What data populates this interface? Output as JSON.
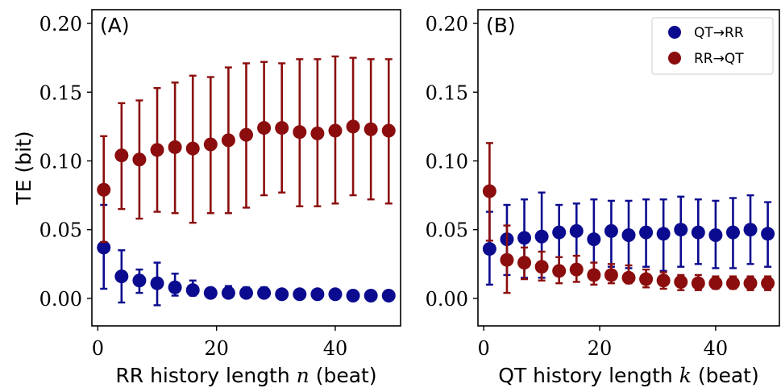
{
  "colors": {
    "qt_to_rr": "#0b0b8f",
    "rr_to_qt": "#8b0d0d"
  },
  "legend": {
    "qt_to_rr": "QT→RR",
    "rr_to_qt": "RR→QT"
  },
  "chart_data": [
    {
      "type": "scatter",
      "panel_label": "(A)",
      "xlabel": "RR history length n (beat)",
      "xlabel_parts": {
        "pre": "RR history length ",
        "var": "n",
        "post": " (beat)"
      },
      "ylabel": "TE (bit)",
      "xlim": [
        -1,
        51
      ],
      "ylim": [
        -0.02,
        0.21
      ],
      "xticks": [
        0,
        20,
        40
      ],
      "xtick_labels": [
        "0",
        "20",
        "40"
      ],
      "yticks": [
        0.0,
        0.05,
        0.1,
        0.15,
        0.2
      ],
      "ytick_labels": [
        "0.00",
        "0.05",
        "0.10",
        "0.15",
        "0.20"
      ],
      "grid": false,
      "error_bars": true,
      "series": [
        {
          "key": "qt_to_rr",
          "x": [
            1,
            4,
            7,
            10,
            13,
            16,
            19,
            22,
            25,
            28,
            31,
            34,
            37,
            40,
            43,
            46,
            49
          ],
          "y": [
            0.037,
            0.016,
            0.013,
            0.011,
            0.008,
            0.006,
            0.004,
            0.004,
            0.004,
            0.004,
            0.003,
            0.003,
            0.003,
            0.003,
            0.002,
            0.002,
            0.002
          ],
          "err_low": [
            0.007,
            -0.003,
            0.004,
            -0.005,
            0.002,
            0.002,
            0.001,
            0.001,
            0.001,
            0.001,
            0.001,
            0.001,
            0.001,
            0.001,
            0.001,
            0.001,
            0.001
          ],
          "err_high": [
            0.068,
            0.035,
            0.021,
            0.026,
            0.018,
            0.013,
            0.007,
            0.009,
            0.008,
            0.008,
            0.005,
            0.004,
            0.004,
            0.005,
            0.004,
            0.003,
            0.003
          ]
        },
        {
          "key": "rr_to_qt",
          "x": [
            1,
            4,
            7,
            10,
            13,
            16,
            19,
            22,
            25,
            28,
            31,
            34,
            37,
            40,
            43,
            46,
            49
          ],
          "y": [
            0.079,
            0.104,
            0.101,
            0.108,
            0.11,
            0.109,
            0.112,
            0.115,
            0.119,
            0.124,
            0.124,
            0.121,
            0.12,
            0.122,
            0.125,
            0.123,
            0.122
          ],
          "err_low": [
            0.041,
            0.065,
            0.058,
            0.063,
            0.062,
            0.055,
            0.062,
            0.062,
            0.066,
            0.075,
            0.077,
            0.067,
            0.067,
            0.069,
            0.075,
            0.072,
            0.069
          ],
          "err_high": [
            0.118,
            0.142,
            0.144,
            0.153,
            0.157,
            0.162,
            0.161,
            0.168,
            0.171,
            0.172,
            0.171,
            0.174,
            0.174,
            0.176,
            0.175,
            0.174,
            0.174
          ]
        }
      ]
    },
    {
      "type": "scatter",
      "panel_label": "(B)",
      "xlabel": "QT history length k (beat)",
      "xlabel_parts": {
        "pre": "QT history length ",
        "var": "k",
        "post": " (beat)"
      },
      "ylabel": "",
      "xlim": [
        -1,
        51
      ],
      "ylim": [
        -0.02,
        0.21
      ],
      "xticks": [
        0,
        20,
        40
      ],
      "xtick_labels": [
        "0",
        "20",
        "40"
      ],
      "yticks": [
        0.0,
        0.05,
        0.1,
        0.15,
        0.2
      ],
      "ytick_labels": [
        "0.00",
        "0.05",
        "0.10",
        "0.15",
        "0.20"
      ],
      "grid": false,
      "error_bars": true,
      "legend_position": "top-right",
      "series": [
        {
          "key": "qt_to_rr",
          "x": [
            1,
            4,
            7,
            10,
            13,
            16,
            19,
            22,
            25,
            28,
            31,
            34,
            37,
            40,
            43,
            46,
            49
          ],
          "y": [
            0.036,
            0.043,
            0.044,
            0.045,
            0.048,
            0.049,
            0.043,
            0.049,
            0.046,
            0.048,
            0.047,
            0.05,
            0.048,
            0.046,
            0.048,
            0.05,
            0.047
          ],
          "err_low": [
            0.01,
            0.017,
            0.015,
            0.015,
            0.023,
            0.024,
            0.015,
            0.023,
            0.022,
            0.023,
            0.02,
            0.023,
            0.025,
            0.022,
            0.022,
            0.025,
            0.023
          ],
          "err_high": [
            0.063,
            0.068,
            0.072,
            0.077,
            0.068,
            0.069,
            0.072,
            0.071,
            0.071,
            0.072,
            0.072,
            0.074,
            0.072,
            0.071,
            0.073,
            0.075,
            0.07
          ]
        },
        {
          "key": "rr_to_qt",
          "x": [
            1,
            4,
            7,
            10,
            13,
            16,
            19,
            22,
            25,
            28,
            31,
            34,
            37,
            40,
            43,
            46,
            49
          ],
          "y": [
            0.078,
            0.028,
            0.026,
            0.023,
            0.02,
            0.021,
            0.017,
            0.017,
            0.015,
            0.014,
            0.013,
            0.012,
            0.011,
            0.011,
            0.011,
            0.011,
            0.011
          ],
          "err_low": [
            0.042,
            0.004,
            0.014,
            0.013,
            0.011,
            0.012,
            0.01,
            0.011,
            0.011,
            0.008,
            0.007,
            0.006,
            0.006,
            0.007,
            0.007,
            0.006,
            0.006
          ],
          "err_high": [
            0.113,
            0.053,
            0.037,
            0.034,
            0.03,
            0.031,
            0.026,
            0.025,
            0.024,
            0.021,
            0.019,
            0.017,
            0.017,
            0.016,
            0.016,
            0.016,
            0.016
          ]
        }
      ]
    }
  ]
}
